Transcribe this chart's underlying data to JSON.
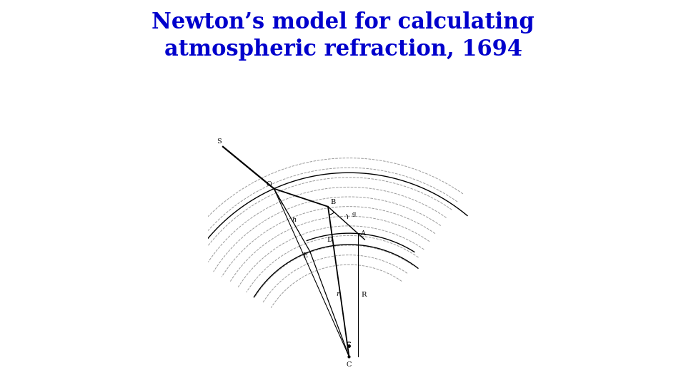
{
  "title_line1": "Newton’s model for calculating",
  "title_line2": "atmospheric refraction, 1694",
  "title_color": "#0000CC",
  "title_fontsize": 22,
  "bg_color": "#ffffff",
  "line_color": "#000000",
  "dashed_color": "#888888",
  "fig_width": 9.6,
  "fig_height": 5.4,
  "dpi": 100,
  "xlim": [
    -3.5,
    5.5
  ],
  "ylim": [
    -5.5,
    3.5
  ],
  "C": [
    1.2,
    -4.8
  ],
  "O": [
    -1.3,
    0.8
  ],
  "B": [
    0.5,
    0.2
  ],
  "A": [
    1.5,
    -0.7
  ],
  "E": [
    -0.1,
    -1.3
  ],
  "D": [
    0.7,
    -1.05
  ],
  "G": [
    1.05,
    -0.15
  ],
  "S": [
    -3.0,
    2.2
  ],
  "arc_ang1_deg": 55,
  "arc_ang2_deg": 148,
  "n_dashed_arcs": 12,
  "label_fontsize": 7
}
